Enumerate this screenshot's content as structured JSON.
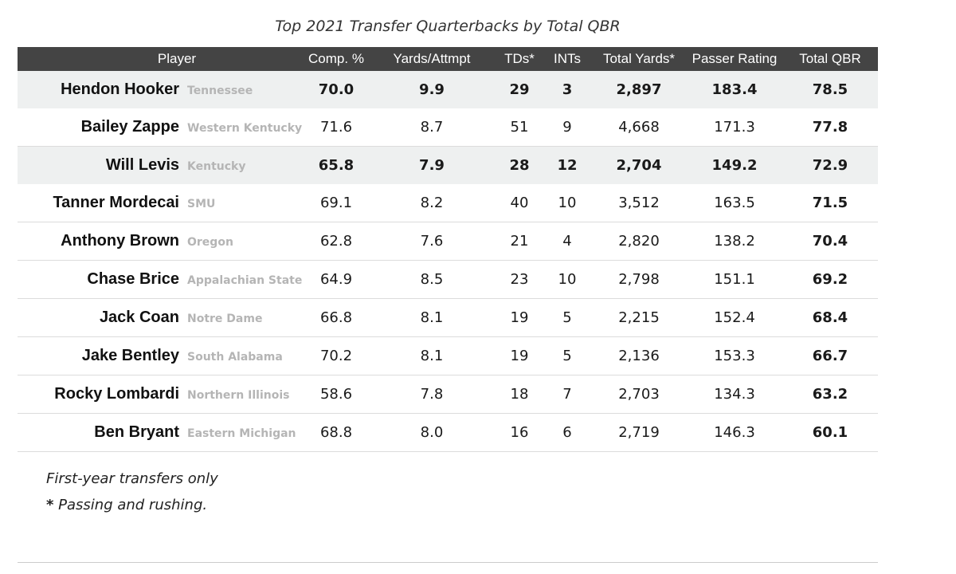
{
  "title": "Top 2021 Transfer Quarterbacks by Total QBR",
  "columns": [
    "Player",
    "Comp. %",
    "Yards/Attmpt",
    "TDs*",
    "INTs",
    "Total Yards*",
    "Passer Rating",
    "Total QBR"
  ],
  "rows": [
    {
      "player": "Hendon Hooker",
      "school": "Tennessee",
      "comp": "70.0",
      "ypa": "9.9",
      "tds": "29",
      "ints": "3",
      "yards": "2,897",
      "rating": "183.4",
      "qbr": "78.5",
      "highlight": true
    },
    {
      "player": "Bailey Zappe",
      "school": "Western Kentucky",
      "comp": "71.6",
      "ypa": "8.7",
      "tds": "51",
      "ints": "9",
      "yards": "4,668",
      "rating": "171.3",
      "qbr": "77.8",
      "highlight": false
    },
    {
      "player": "Will Levis",
      "school": "Kentucky",
      "comp": "65.8",
      "ypa": "7.9",
      "tds": "28",
      "ints": "12",
      "yards": "2,704",
      "rating": "149.2",
      "qbr": "72.9",
      "highlight": true
    },
    {
      "player": "Tanner Mordecai",
      "school": "SMU",
      "comp": "69.1",
      "ypa": "8.2",
      "tds": "40",
      "ints": "10",
      "yards": "3,512",
      "rating": "163.5",
      "qbr": "71.5",
      "highlight": false
    },
    {
      "player": "Anthony Brown",
      "school": "Oregon",
      "comp": "62.8",
      "ypa": "7.6",
      "tds": "21",
      "ints": "4",
      "yards": "2,820",
      "rating": "138.2",
      "qbr": "70.4",
      "highlight": false
    },
    {
      "player": "Chase Brice",
      "school": "Appalachian State",
      "comp": "64.9",
      "ypa": "8.5",
      "tds": "23",
      "ints": "10",
      "yards": "2,798",
      "rating": "151.1",
      "qbr": "69.2",
      "highlight": false
    },
    {
      "player": "Jack Coan",
      "school": "Notre Dame",
      "comp": "66.8",
      "ypa": "8.1",
      "tds": "19",
      "ints": "5",
      "yards": "2,215",
      "rating": "152.4",
      "qbr": "68.4",
      "highlight": false
    },
    {
      "player": "Jake Bentley",
      "school": "South Alabama",
      "comp": "70.2",
      "ypa": "8.1",
      "tds": "19",
      "ints": "5",
      "yards": "2,136",
      "rating": "153.3",
      "qbr": "66.7",
      "highlight": false
    },
    {
      "player": "Rocky Lombardi",
      "school": "Northern Illinois",
      "comp": "58.6",
      "ypa": "7.8",
      "tds": "18",
      "ints": "7",
      "yards": "2,703",
      "rating": "134.3",
      "qbr": "63.2",
      "highlight": false
    },
    {
      "player": "Ben Bryant",
      "school": "Eastern Michigan",
      "comp": "68.8",
      "ypa": "8.0",
      "tds": "16",
      "ints": "6",
      "yards": "2,719",
      "rating": "146.3",
      "qbr": "60.1",
      "highlight": false
    }
  ],
  "notes": {
    "note1": "First-year transfers only",
    "note2_marker": "*",
    "note2": "Passing and rushing."
  },
  "colors": {
    "header_bg": "#444444",
    "highlight_bg": "#eef0f0",
    "school_text": "#b5b5b5"
  },
  "chart_data": {
    "type": "table",
    "title": "Top 2021 Transfer Quarterbacks by Total QBR",
    "columns": [
      "Player",
      "Comp. %",
      "Yards/Attmpt",
      "TDs*",
      "INTs",
      "Total Yards*",
      "Passer Rating",
      "Total QBR"
    ]
  }
}
